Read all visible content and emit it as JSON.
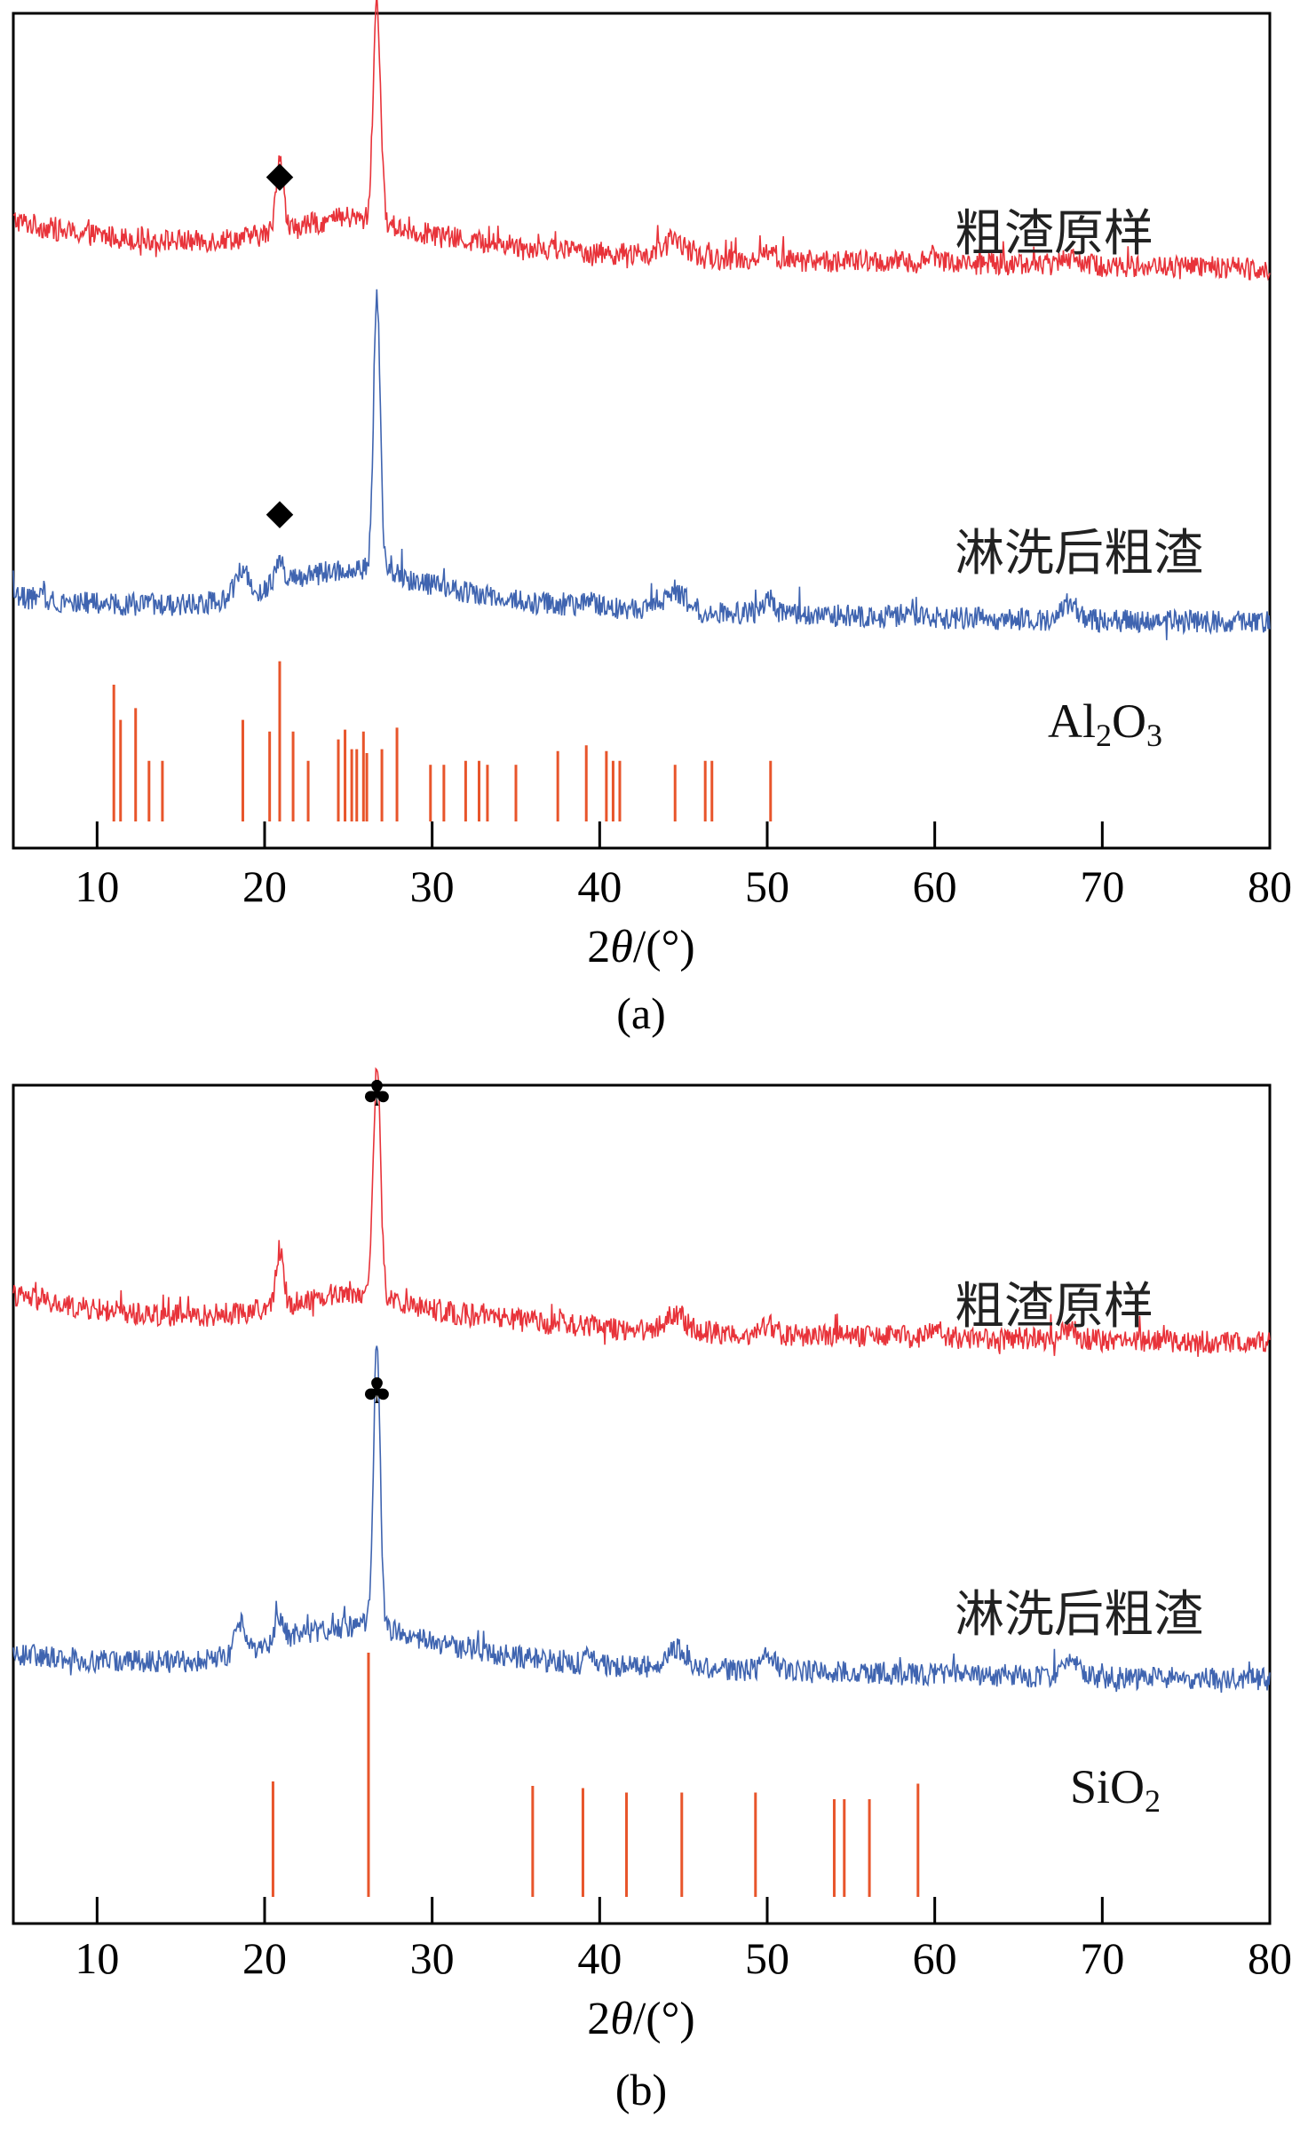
{
  "chart_data": [
    {
      "type": "line",
      "panel": "a",
      "caption": "(a)",
      "xlabel": "2θ/(°)",
      "xlabel_parts": {
        "pre": "2",
        "theta": "θ",
        "post": "/(°)"
      },
      "ylabel": "",
      "xlim": [
        5,
        80
      ],
      "xticks": [
        10,
        20,
        30,
        40,
        50,
        60,
        70,
        80
      ],
      "series": [
        {
          "name": "粗渣原样",
          "color": "#e8333a",
          "baseline": [
            [
              5,
              0.7
            ],
            [
              8,
              0.62
            ],
            [
              12,
              0.57
            ],
            [
              16,
              0.55
            ],
            [
              19,
              0.58
            ],
            [
              21,
              0.62
            ],
            [
              23,
              0.68
            ],
            [
              25,
              0.72
            ],
            [
              27,
              0.68
            ],
            [
              29,
              0.62
            ],
            [
              32,
              0.56
            ],
            [
              36,
              0.51
            ],
            [
              40,
              0.47
            ],
            [
              45,
              0.44
            ],
            [
              50,
              0.42
            ],
            [
              60,
              0.4
            ],
            [
              70,
              0.38
            ],
            [
              80,
              0.36
            ]
          ],
          "peaks": [
            [
              20.9,
              0.55,
              0.22
            ],
            [
              26.7,
              1.55,
              0.22
            ],
            [
              44.5,
              0.12,
              0.6
            ],
            [
              50.1,
              0.07,
              0.35
            ],
            [
              60.0,
              0.05,
              0.4
            ],
            [
              68.0,
              0.07,
              0.5
            ]
          ]
        },
        {
          "name": "淋洗后粗渣",
          "color": "#3f64b0",
          "baseline": [
            [
              5,
              0.3
            ],
            [
              10,
              0.25
            ],
            [
              15,
              0.24
            ],
            [
              18,
              0.28
            ],
            [
              20,
              0.36
            ],
            [
              22,
              0.43
            ],
            [
              24,
              0.48
            ],
            [
              26,
              0.5
            ],
            [
              28,
              0.45
            ],
            [
              30,
              0.38
            ],
            [
              33,
              0.31
            ],
            [
              36,
              0.26
            ],
            [
              40,
              0.22
            ],
            [
              45,
              0.2
            ],
            [
              50,
              0.18
            ],
            [
              60,
              0.15
            ],
            [
              70,
              0.13
            ],
            [
              80,
              0.12
            ]
          ],
          "peaks": [
            [
              18.6,
              0.2,
              0.35
            ],
            [
              20.9,
              0.18,
              0.25
            ],
            [
              26.7,
              1.95,
              0.2
            ],
            [
              39.5,
              0.06,
              0.3
            ],
            [
              44.5,
              0.14,
              0.6
            ],
            [
              50.1,
              0.12,
              0.3
            ],
            [
              68.0,
              0.12,
              0.5
            ]
          ]
        }
      ],
      "reference": {
        "name": "Al2O3",
        "label_main": "Al",
        "label_sub1": "2",
        "label_mid": "O",
        "label_sub2": "3",
        "color": "#e8552b",
        "lines": [
          [
            11.0,
            0.7
          ],
          [
            11.4,
            0.52
          ],
          [
            12.3,
            0.58
          ],
          [
            13.1,
            0.31
          ],
          [
            13.9,
            0.31
          ],
          [
            18.7,
            0.52
          ],
          [
            20.3,
            0.46
          ],
          [
            20.9,
            0.82
          ],
          [
            21.7,
            0.46
          ],
          [
            22.6,
            0.31
          ],
          [
            24.4,
            0.42
          ],
          [
            24.8,
            0.47
          ],
          [
            25.2,
            0.37
          ],
          [
            25.5,
            0.37
          ],
          [
            25.9,
            0.46
          ],
          [
            26.1,
            0.35
          ],
          [
            27.0,
            0.37
          ],
          [
            27.9,
            0.48
          ],
          [
            29.9,
            0.29
          ],
          [
            30.7,
            0.29
          ],
          [
            32.0,
            0.31
          ],
          [
            32.8,
            0.31
          ],
          [
            33.3,
            0.29
          ],
          [
            35.0,
            0.29
          ],
          [
            37.5,
            0.36
          ],
          [
            39.2,
            0.39
          ],
          [
            40.4,
            0.36
          ],
          [
            40.8,
            0.31
          ],
          [
            41.2,
            0.31
          ],
          [
            44.5,
            0.29
          ],
          [
            46.3,
            0.31
          ],
          [
            46.7,
            0.31
          ],
          [
            50.2,
            0.31
          ]
        ]
      },
      "annotations": [
        {
          "symbol": "◆",
          "x": 20.9,
          "series": "粗渣原样"
        },
        {
          "symbol": "◆",
          "x": 20.9,
          "series": "淋洗后粗渣"
        }
      ]
    },
    {
      "type": "line",
      "panel": "b",
      "caption": "(b)",
      "xlabel": "2θ/(°)",
      "xlabel_parts": {
        "pre": "2",
        "theta": "θ",
        "post": "/(°)"
      },
      "ylabel": "",
      "xlim": [
        5,
        80
      ],
      "xticks": [
        10,
        20,
        30,
        40,
        50,
        60,
        70,
        80
      ],
      "series": [
        {
          "name": "粗渣原样",
          "color": "#e8333a",
          "baseline": [
            [
              5,
              0.7
            ],
            [
              8,
              0.62
            ],
            [
              12,
              0.57
            ],
            [
              16,
              0.55
            ],
            [
              19,
              0.58
            ],
            [
              21,
              0.62
            ],
            [
              23,
              0.68
            ],
            [
              25,
              0.72
            ],
            [
              27,
              0.68
            ],
            [
              29,
              0.62
            ],
            [
              32,
              0.56
            ],
            [
              36,
              0.51
            ],
            [
              40,
              0.47
            ],
            [
              45,
              0.44
            ],
            [
              50,
              0.42
            ],
            [
              60,
              0.4
            ],
            [
              70,
              0.38
            ],
            [
              80,
              0.36
            ]
          ],
          "peaks": [
            [
              20.9,
              0.4,
              0.22
            ],
            [
              26.7,
              1.6,
              0.22
            ],
            [
              44.5,
              0.12,
              0.6
            ],
            [
              50.1,
              0.07,
              0.35
            ],
            [
              60.0,
              0.05,
              0.4
            ],
            [
              68.0,
              0.07,
              0.5
            ]
          ]
        },
        {
          "name": "淋洗后粗渣",
          "color": "#3f64b0",
          "baseline": [
            [
              5,
              0.3
            ],
            [
              10,
              0.25
            ],
            [
              15,
              0.24
            ],
            [
              18,
              0.28
            ],
            [
              20,
              0.36
            ],
            [
              22,
              0.43
            ],
            [
              24,
              0.48
            ],
            [
              26,
              0.5
            ],
            [
              28,
              0.45
            ],
            [
              30,
              0.38
            ],
            [
              33,
              0.31
            ],
            [
              36,
              0.26
            ],
            [
              40,
              0.22
            ],
            [
              45,
              0.2
            ],
            [
              50,
              0.18
            ],
            [
              60,
              0.15
            ],
            [
              70,
              0.13
            ],
            [
              80,
              0.12
            ]
          ],
          "peaks": [
            [
              18.6,
              0.2,
              0.35
            ],
            [
              20.9,
              0.18,
              0.25
            ],
            [
              26.7,
              2.05,
              0.2
            ],
            [
              39.5,
              0.06,
              0.3
            ],
            [
              44.5,
              0.14,
              0.6
            ],
            [
              50.1,
              0.12,
              0.3
            ],
            [
              68.0,
              0.12,
              0.5
            ]
          ]
        }
      ],
      "reference": {
        "name": "SiO2",
        "label_main": "SiO",
        "label_sub1": "2",
        "label_mid": "",
        "label_sub2": "",
        "color": "#e8552b",
        "lines": [
          [
            20.5,
            0.52
          ],
          [
            26.2,
            1.1
          ],
          [
            36.0,
            0.5
          ],
          [
            39.0,
            0.49
          ],
          [
            41.6,
            0.47
          ],
          [
            44.9,
            0.47
          ],
          [
            49.3,
            0.47
          ],
          [
            54.0,
            0.44
          ],
          [
            54.6,
            0.44
          ],
          [
            56.1,
            0.44
          ],
          [
            59.0,
            0.51
          ]
        ]
      },
      "annotations": [
        {
          "symbol": "♣",
          "x": 26.7,
          "series": "粗渣原样"
        },
        {
          "symbol": "♣",
          "x": 26.7,
          "series": "淋洗后粗渣"
        }
      ]
    }
  ]
}
